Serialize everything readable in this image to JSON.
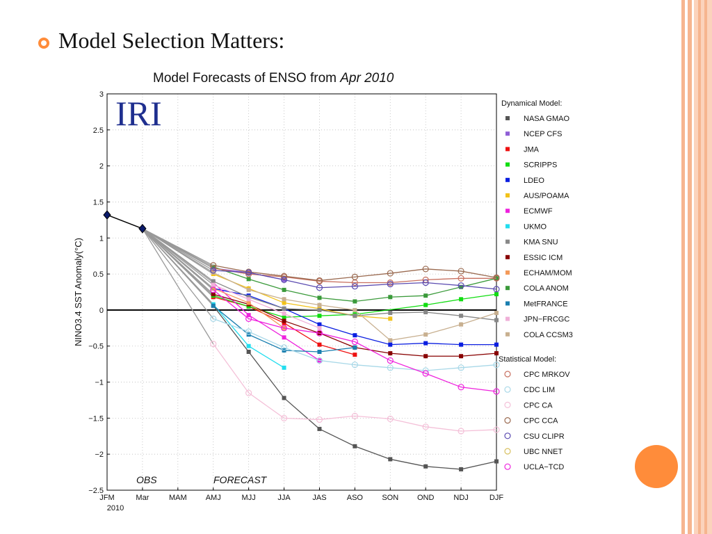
{
  "slide": {
    "title": "Model Selection Matters:",
    "accent_color": "#ff8c3a",
    "stripe_color": "#f6b58f",
    "bullet_icon": "circle-bullet-icon"
  },
  "chart_data": {
    "type": "line",
    "title_prefix": "Model Forecasts of ENSO from ",
    "title_italic": "Apr 2010",
    "ylabel": "NINO3.4 SST Anomaly(°C)",
    "xlabel": "",
    "logo": "IRI",
    "obs_label": "OBS",
    "forecast_label": "FORECAST",
    "categories": [
      "JFM",
      "Mar",
      "MAM",
      "AMJ",
      "MJJ",
      "JJA",
      "JAS",
      "ASO",
      "SON",
      "OND",
      "NDJ",
      "DJF"
    ],
    "year_label": "2010",
    "ylim": [
      -2.5,
      3
    ],
    "yticks": [
      3,
      2.5,
      2,
      1.5,
      1,
      0.5,
      0,
      -0.5,
      -1,
      -1.5,
      -2,
      -2.5
    ],
    "ytick_labels": [
      "3",
      "2.5",
      "2",
      "1.5",
      "1",
      "0.5",
      "0",
      "−0.5",
      "−1",
      "−1.5",
      "−2",
      "−2.5"
    ],
    "grid": true,
    "observed": {
      "x": [
        "JFM",
        "Mar"
      ],
      "values": [
        1.32,
        1.13
      ]
    },
    "legend": {
      "dynamical_heading": "Dynamical Model:",
      "statistical_heading": "Statistical Model:",
      "placement": "right"
    },
    "series": [
      {
        "name": "NASA GMAO",
        "group": "dynamical",
        "color": "#555555",
        "marker": "square",
        "values": [
          null,
          null,
          null,
          0.06,
          -0.58,
          -1.22,
          -1.65,
          -1.89,
          -2.07,
          -2.17,
          -2.21,
          -2.1
        ]
      },
      {
        "name": "NCEP CFS",
        "group": "dynamical",
        "color": "#8f5fd6",
        "marker": "square",
        "values": [
          null,
          null,
          null,
          0.58,
          0.52,
          0.42,
          null,
          null,
          null,
          null,
          null,
          null
        ]
      },
      {
        "name": "JMA",
        "group": "dynamical",
        "color": "#ee1111",
        "marker": "square",
        "values": [
          null,
          null,
          null,
          0.18,
          0.05,
          -0.18,
          -0.48,
          -0.62,
          null,
          null,
          null,
          null
        ]
      },
      {
        "name": "SCRIPPS",
        "group": "dynamical",
        "color": "#11dd11",
        "marker": "square",
        "values": [
          null,
          null,
          null,
          0.2,
          0.05,
          -0.1,
          -0.08,
          -0.06,
          null,
          0.07,
          0.15,
          0.22
        ]
      },
      {
        "name": "LDEO",
        "group": "dynamical",
        "color": "#0a1ee0",
        "marker": "square",
        "values": [
          null,
          null,
          null,
          0.3,
          0.2,
          0.02,
          -0.2,
          -0.35,
          -0.48,
          -0.46,
          -0.48,
          -0.48
        ]
      },
      {
        "name": "AUS/POAMA",
        "group": "dynamical",
        "color": "#f2c21a",
        "marker": "square",
        "values": [
          null,
          null,
          null,
          0.5,
          0.3,
          0.1,
          0.02,
          -0.08,
          -0.12,
          null,
          null,
          null
        ]
      },
      {
        "name": "ECMWF",
        "group": "dynamical",
        "color": "#ee22dd",
        "marker": "square",
        "values": [
          null,
          null,
          null,
          0.38,
          -0.07,
          -0.38,
          -0.7,
          null,
          null,
          null,
          null,
          null
        ]
      },
      {
        "name": "UKMO",
        "group": "dynamical",
        "color": "#22ddee",
        "marker": "square",
        "values": [
          null,
          null,
          null,
          0.08,
          -0.5,
          -0.8,
          null,
          null,
          null,
          null,
          null,
          null
        ]
      },
      {
        "name": "KMA SNU",
        "group": "dynamical",
        "color": "#888888",
        "marker": "square",
        "values": [
          null,
          null,
          null,
          0.4,
          0.18,
          0.02,
          0.0,
          -0.08,
          -0.04,
          -0.03,
          -0.08,
          -0.14
        ]
      },
      {
        "name": "ESSIC ICM",
        "group": "dynamical",
        "color": "#880000",
        "marker": "square",
        "values": [
          null,
          null,
          null,
          0.22,
          0.08,
          -0.15,
          -0.32,
          -0.52,
          -0.6,
          -0.64,
          -0.64,
          -0.6
        ]
      },
      {
        "name": "ECHAM/MOM",
        "group": "dynamical",
        "color": "#f49a5a",
        "marker": "square",
        "values": [
          null,
          null,
          null,
          0.3,
          0.1,
          -0.25,
          null,
          null,
          null,
          null,
          null,
          null
        ]
      },
      {
        "name": "COLA ANOM",
        "group": "dynamical",
        "color": "#3a9a3a",
        "marker": "square",
        "values": [
          null,
          null,
          null,
          0.6,
          0.43,
          0.28,
          0.17,
          0.12,
          0.18,
          0.2,
          0.32,
          0.44
        ]
      },
      {
        "name": "MetFRANCE",
        "group": "dynamical",
        "color": "#1a7fb0",
        "marker": "square",
        "values": [
          null,
          null,
          null,
          0.06,
          -0.34,
          -0.56,
          -0.58,
          -0.52,
          null,
          null,
          null,
          null
        ]
      },
      {
        "name": "JPN−FRCGC",
        "group": "dynamical",
        "color": "#f0b0d8",
        "marker": "square",
        "values": [
          null,
          null,
          null,
          0.35,
          0.15,
          -0.05,
          -0.25,
          null,
          null,
          null,
          null,
          null
        ]
      },
      {
        "name": "COLA CCSM3",
        "group": "dynamical",
        "color": "#c8b090",
        "marker": "square",
        "values": [
          null,
          null,
          null,
          0.52,
          0.28,
          0.15,
          0.07,
          0.0,
          -0.42,
          -0.34,
          -0.2,
          -0.04
        ]
      },
      {
        "name": "CPC MRKOV",
        "group": "statistical",
        "color": "#c87060",
        "marker": "circle",
        "values": [
          null,
          null,
          null,
          0.58,
          0.5,
          0.46,
          0.4,
          0.38,
          0.38,
          0.42,
          0.44,
          0.44
        ]
      },
      {
        "name": "CDC LIM",
        "group": "statistical",
        "color": "#a8d8e8",
        "marker": "circle",
        "values": [
          null,
          null,
          null,
          -0.12,
          -0.3,
          -0.52,
          -0.7,
          -0.76,
          -0.8,
          -0.84,
          -0.8,
          -0.76
        ]
      },
      {
        "name": "CPC CA",
        "group": "statistical",
        "color": "#f4c0d8",
        "marker": "circle",
        "values": [
          null,
          null,
          null,
          -0.47,
          -1.15,
          -1.5,
          -1.52,
          -1.47,
          -1.51,
          -1.62,
          -1.68,
          -1.66
        ]
      },
      {
        "name": "CPC CCA",
        "group": "statistical",
        "color": "#9a6a50",
        "marker": "circle",
        "values": [
          null,
          null,
          null,
          0.62,
          0.53,
          0.47,
          0.41,
          0.46,
          0.51,
          0.57,
          0.54,
          0.45
        ]
      },
      {
        "name": "CSU CLIPR",
        "group": "statistical",
        "color": "#5a4ab0",
        "marker": "circle",
        "values": [
          null,
          null,
          null,
          0.55,
          0.52,
          0.42,
          0.31,
          0.33,
          0.36,
          0.38,
          0.34,
          0.29
        ]
      },
      {
        "name": "UBC NNET",
        "group": "statistical",
        "color": "#d8c060",
        "marker": "circle",
        "values": [
          null,
          null,
          null,
          null,
          null,
          null,
          null,
          null,
          null,
          null,
          null,
          null
        ]
      },
      {
        "name": "UCLA−TCD",
        "group": "statistical",
        "color": "#ee22dd",
        "marker": "circle",
        "values": [
          null,
          null,
          null,
          0.28,
          -0.12,
          -0.25,
          -0.32,
          -0.44,
          -0.7,
          -0.88,
          -1.07,
          -1.13
        ]
      }
    ]
  }
}
